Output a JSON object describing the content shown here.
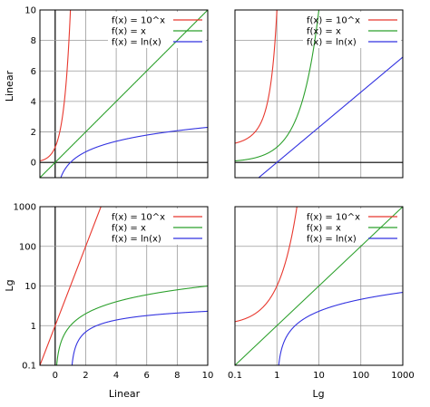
{
  "colors": {
    "exp": "#e8382e",
    "lin": "#2ca02c",
    "ln": "#3232e0",
    "grid": "#9a9a9a"
  },
  "row_labels": [
    "Linear",
    "Lg"
  ],
  "col_labels": [
    "Linear",
    "Lg"
  ],
  "chart_data": [
    {
      "type": "line",
      "panel": "top-left",
      "x_scale": "linear",
      "y_scale": "linear",
      "xlim": [
        -1,
        10
      ],
      "ylim": [
        -1,
        10
      ],
      "x_ticks": [
        0,
        2,
        4,
        6,
        8,
        10
      ],
      "x_tick_labels": [],
      "y_ticks": [
        0,
        2,
        4,
        6,
        8,
        10
      ],
      "y_tick_labels": [
        "0",
        "2",
        "4",
        "6",
        "8",
        "10"
      ],
      "grid": true,
      "legend_position": "top-right",
      "series": [
        {
          "name": "f(x) = 10^x",
          "func": "10^x",
          "color": "#e8382e"
        },
        {
          "name": "f(x) = x",
          "func": "x",
          "color": "#2ca02c"
        },
        {
          "name": "f(x) = ln(x)",
          "func": "ln(x)",
          "color": "#3232e0"
        }
      ]
    },
    {
      "type": "line",
      "panel": "top-right",
      "x_scale": "log",
      "y_scale": "linear",
      "xlim": [
        0.1,
        1000
      ],
      "ylim": [
        -1,
        10
      ],
      "x_ticks": [
        0.1,
        1,
        10,
        100,
        1000
      ],
      "x_tick_labels": [],
      "y_ticks": [
        0,
        2,
        4,
        6,
        8,
        10
      ],
      "y_tick_labels": [],
      "grid": true,
      "legend_position": "top-right",
      "series": [
        {
          "name": "f(x) = 10^x",
          "func": "10^x",
          "color": "#e8382e"
        },
        {
          "name": "f(x) = x",
          "func": "x",
          "color": "#2ca02c"
        },
        {
          "name": "f(x) = ln(x)",
          "func": "ln(x)",
          "color": "#3232e0"
        }
      ]
    },
    {
      "type": "line",
      "panel": "bottom-left",
      "x_scale": "linear",
      "y_scale": "log",
      "xlim": [
        -1,
        10
      ],
      "ylim": [
        0.1,
        1000
      ],
      "x_ticks": [
        0,
        2,
        4,
        6,
        8,
        10
      ],
      "x_tick_labels": [
        "0",
        "2",
        "4",
        "6",
        "8",
        "10"
      ],
      "y_ticks": [
        0.1,
        1,
        10,
        100,
        1000
      ],
      "y_tick_labels": [
        "0.1",
        "1",
        "10",
        "100",
        "1000"
      ],
      "grid": true,
      "legend_position": "top-right",
      "series": [
        {
          "name": "f(x) = 10^x",
          "func": "10^x",
          "color": "#e8382e"
        },
        {
          "name": "f(x) = x",
          "func": "x",
          "color": "#2ca02c"
        },
        {
          "name": "f(x) = ln(x)",
          "func": "ln(x)",
          "color": "#3232e0"
        }
      ]
    },
    {
      "type": "line",
      "panel": "bottom-right",
      "x_scale": "log",
      "y_scale": "log",
      "xlim": [
        0.1,
        1000
      ],
      "ylim": [
        0.1,
        1000
      ],
      "x_ticks": [
        0.1,
        1,
        10,
        100,
        1000
      ],
      "x_tick_labels": [
        "0.1",
        "1",
        "10",
        "100",
        "1000"
      ],
      "y_ticks": [
        0.1,
        1,
        10,
        100,
        1000
      ],
      "y_tick_labels": [],
      "grid": true,
      "legend_position": "top-right",
      "series": [
        {
          "name": "f(x) = 10^x",
          "func": "10^x",
          "color": "#e8382e"
        },
        {
          "name": "f(x) = x",
          "func": "x",
          "color": "#2ca02c"
        },
        {
          "name": "f(x) = ln(x)",
          "func": "ln(x)",
          "color": "#3232e0"
        }
      ]
    }
  ]
}
